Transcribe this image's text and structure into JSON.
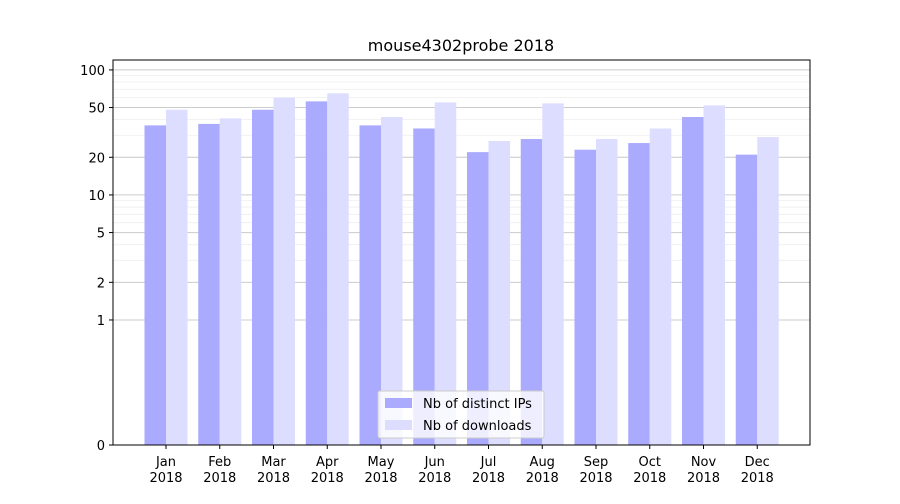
{
  "chart_data": {
    "type": "bar",
    "title": "mouse4302probe 2018",
    "xlabel": "",
    "ylabel": "",
    "y_scale": "symlog",
    "ylim": [
      0,
      120
    ],
    "y_ticks": [
      0,
      1,
      2,
      5,
      10,
      20,
      50,
      100
    ],
    "categories": [
      "Jan\n2018",
      "Feb\n2018",
      "Mar\n2018",
      "Apr\n2018",
      "May\n2018",
      "Jun\n2018",
      "Jul\n2018",
      "Aug\n2018",
      "Sep\n2018",
      "Oct\n2018",
      "Nov\n2018",
      "Dec\n2018"
    ],
    "series": [
      {
        "name": "Nb of distinct IPs",
        "color": "#aaaaff",
        "values": [
          36,
          37,
          48,
          56,
          36,
          34,
          22,
          28,
          23,
          26,
          42,
          21
        ]
      },
      {
        "name": "Nb of downloads",
        "color": "#ddddff",
        "values": [
          48,
          41,
          60,
          65,
          42,
          55,
          27,
          54,
          28,
          34,
          52,
          29
        ]
      }
    ],
    "grid": true,
    "legend_position": "bottom-center"
  }
}
